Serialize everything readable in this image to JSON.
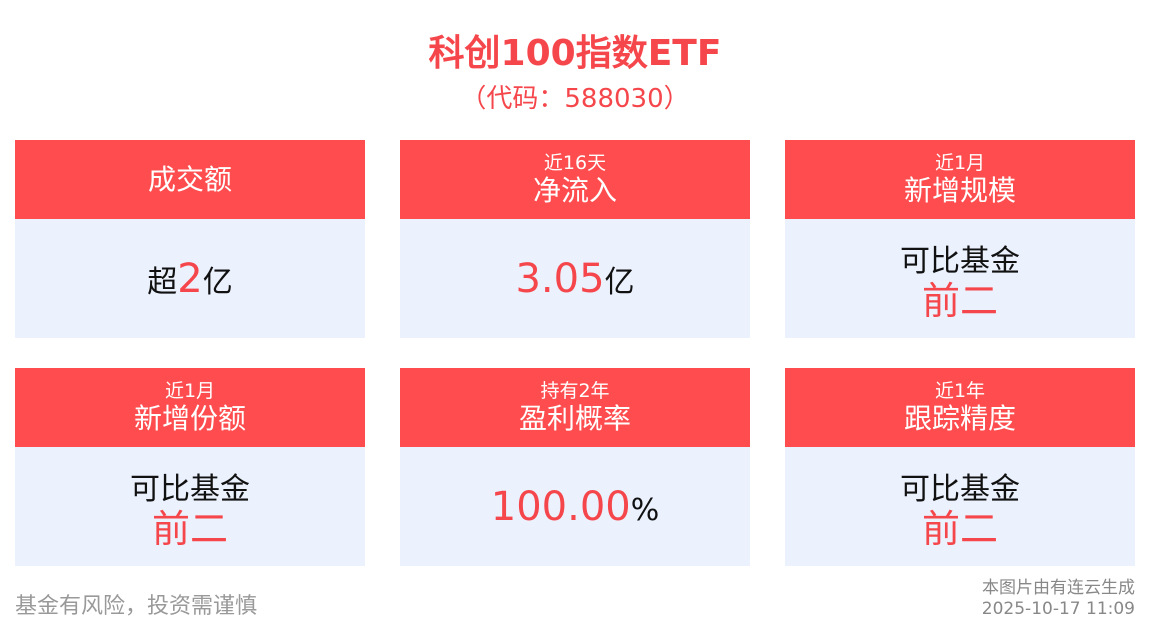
{
  "header": {
    "title": "科创100指数ETF",
    "subtitle": "（代码：588030）"
  },
  "colors": {
    "accent": "#ff4d4f",
    "card_body": "#ebf2fe",
    "title": "#f5474b"
  },
  "cards": [
    {
      "pre": "",
      "label": "成交额",
      "prefix": "超",
      "number": "2",
      "suffix": "亿"
    },
    {
      "pre": "近16天",
      "label": "净流入",
      "prefix": "",
      "number": "3.05",
      "suffix": "亿"
    },
    {
      "pre": "近1月",
      "label": "新增规模",
      "line1": "可比基金",
      "rank": "前二"
    },
    {
      "pre": "近1月",
      "label": "新增份额",
      "line1": "可比基金",
      "rank": "前二"
    },
    {
      "pre": "持有2年",
      "label": "盈利概率",
      "prefix": "",
      "number": "100.00",
      "suffix": "%"
    },
    {
      "pre": "近1年",
      "label": "跟踪精度",
      "line1": "可比基金",
      "rank": "前二"
    }
  ],
  "footer": {
    "risk": "基金有风险，投资需谨慎",
    "generated": "本图片由有连云生成",
    "timestamp": "2025-10-17 11:09"
  }
}
